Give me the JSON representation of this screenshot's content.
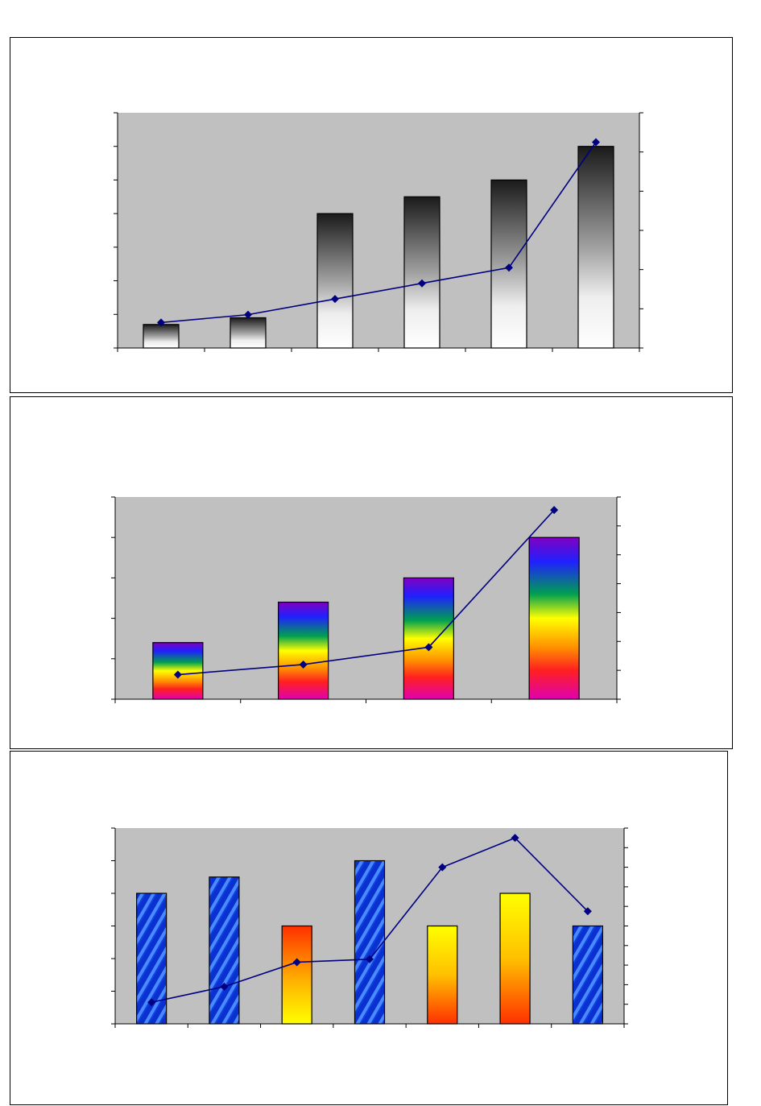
{
  "chart_data": [
    {
      "type": "bar",
      "title": "",
      "xlabel": "",
      "ylabel": "",
      "categories": [
        "",
        "",
        "",
        "",
        "",
        ""
      ],
      "y_range": [
        0,
        7
      ],
      "y2_range": [
        0,
        6
      ],
      "grid": false,
      "plot_color": "#c0c0c0",
      "fill": "gray-gradient",
      "line_color": "#000080",
      "series": [
        {
          "type": "bar",
          "axis": "left",
          "values": [
            0.7,
            0.9,
            4.0,
            4.5,
            5.0,
            6.0
          ]
        },
        {
          "type": "line",
          "axis": "right",
          "values": [
            0.65,
            0.85,
            1.25,
            1.65,
            2.05,
            5.25
          ]
        }
      ]
    },
    {
      "type": "bar",
      "title": "",
      "xlabel": "",
      "ylabel": "",
      "categories": [
        "",
        "",
        "",
        ""
      ],
      "y_range": [
        0,
        5
      ],
      "y2_range": [
        0,
        7
      ],
      "grid": false,
      "plot_color": "#c0c0c0",
      "fill": "rainbow-gradient",
      "line_color": "#000080",
      "series": [
        {
          "type": "bar",
          "axis": "left",
          "values": [
            1.4,
            2.4,
            3.0,
            4.0
          ]
        },
        {
          "type": "line",
          "axis": "right",
          "values": [
            0.85,
            1.2,
            1.8,
            6.55
          ]
        }
      ]
    },
    {
      "type": "bar",
      "title": "",
      "xlabel": "",
      "ylabel": "",
      "categories": [
        "",
        "",
        "",
        "",
        "",
        "",
        ""
      ],
      "y_range": [
        0,
        6
      ],
      "y2_range": [
        0,
        10
      ],
      "grid": false,
      "plot_color": "#c0c0c0",
      "fill": "mixed-blue-yellow",
      "line_color": "#000080",
      "series": [
        {
          "type": "bar",
          "axis": "left",
          "values": [
            4.0,
            4.5,
            3.0,
            5.0,
            3.0,
            4.0,
            3.0
          ],
          "styles": [
            "blue",
            "blue",
            "redyellow",
            "blue",
            "yellowred",
            "yellowred",
            "blue"
          ]
        },
        {
          "type": "line",
          "axis": "right",
          "values": [
            1.1,
            1.9,
            3.15,
            3.3,
            8.0,
            9.5,
            5.75
          ]
        }
      ]
    }
  ]
}
